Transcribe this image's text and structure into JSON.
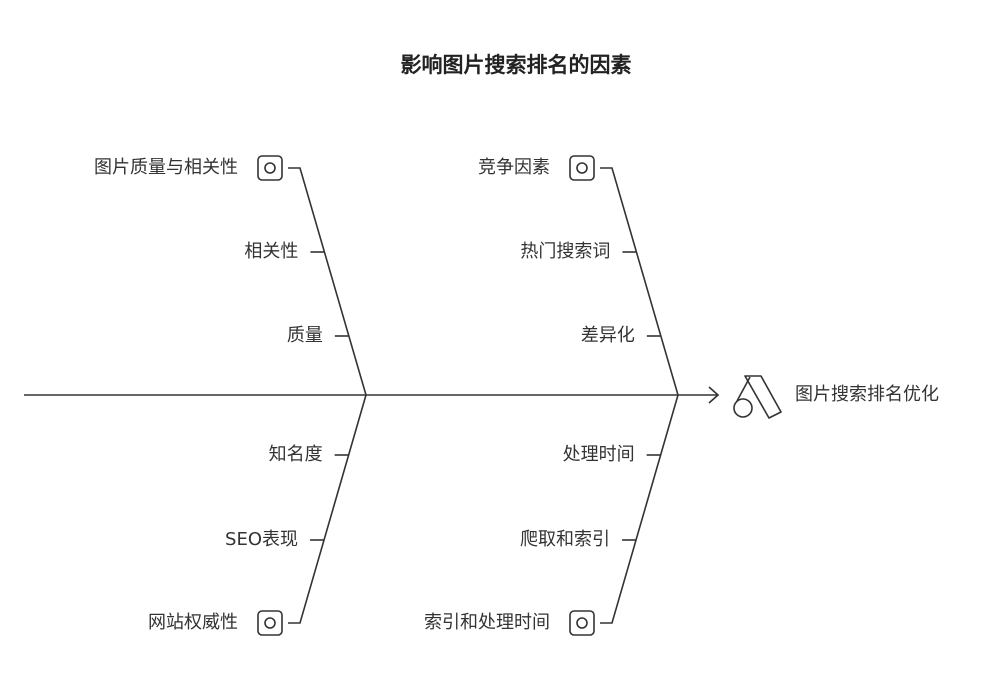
{
  "title": "影响图片搜索排名的因素",
  "head": {
    "label": "图片搜索排名优化"
  },
  "branches": [
    {
      "label": "图片质量与相关性",
      "items": [
        "相关性",
        "质量"
      ]
    },
    {
      "label": "竞争因素",
      "items": [
        "热门搜索词",
        "差异化"
      ]
    },
    {
      "label": "网站权威性",
      "items": [
        "知名度",
        "SEO表现"
      ]
    },
    {
      "label": "索引和处理时间",
      "items": [
        "处理时间",
        "爬取和索引"
      ]
    }
  ]
}
